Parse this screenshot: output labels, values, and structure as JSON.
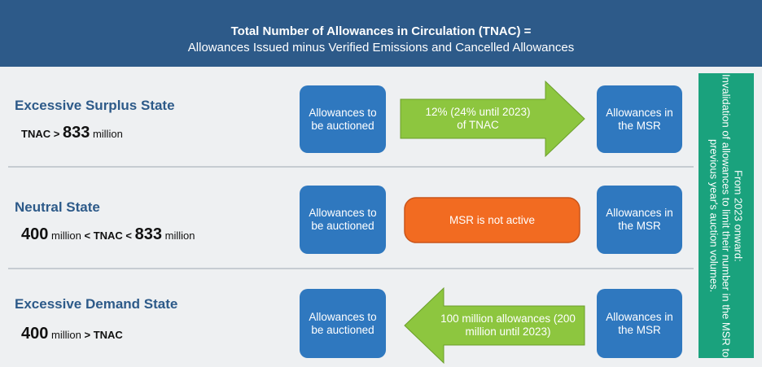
{
  "header": {
    "title": "Total Number of Allowances in Circulation (TNAC) =",
    "subtitle": "Allowances Issued minus Verified Emissions and Cancelled Allowances"
  },
  "rows": [
    {
      "state": "Excessive Surplus State",
      "condition": [
        "TNAC",
        ">",
        "833",
        "million"
      ],
      "from": "Allowances to be auctioned",
      "flow": "12% (24% until 2023) of TNAC",
      "to": "Allowances in the MSR"
    },
    {
      "state": "Neutral State",
      "condition": [
        "400",
        "million",
        "<",
        "TNAC",
        "<",
        "833",
        "million"
      ],
      "from": "Allowances to be auctioned",
      "flow": "MSR is not active",
      "to": "Allowances in the MSR"
    },
    {
      "state": "Excessive Demand State",
      "condition": [
        "400",
        "million",
        ">",
        "TNAC"
      ],
      "from": "Allowances to be auctioned",
      "flow": "100 million allowances (200 million until 2023)",
      "to": "Allowances in the MSR"
    }
  ],
  "side_note": {
    "heading": "From 2023 onward:",
    "text": "Invalidation of allowances to limit their number in the MSR to previous year's auction volumes."
  }
}
